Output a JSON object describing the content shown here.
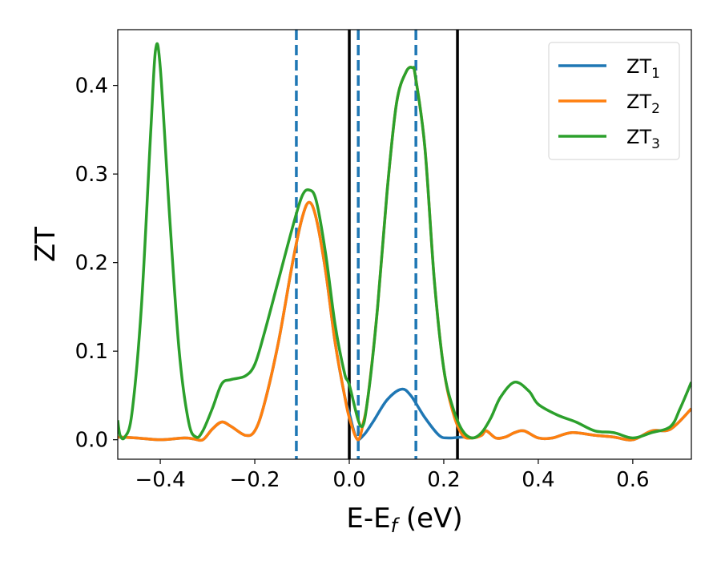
{
  "chart_data": {
    "type": "line",
    "title": "",
    "xlabel": "E-E_f (eV)",
    "xlabel_main": "E-E",
    "xlabel_sub": "f",
    "xlabel_tail": " (eV)",
    "ylabel": "ZT",
    "xlim": [
      -0.49,
      0.724
    ],
    "ylim": [
      -0.022,
      0.463
    ],
    "xticks": [
      -0.4,
      -0.2,
      0.0,
      0.2,
      0.4,
      0.6
    ],
    "xtick_labels": [
      "−0.4",
      "−0.2",
      "0.0",
      "0.2",
      "0.4",
      "0.6"
    ],
    "yticks": [
      0.0,
      0.1,
      0.2,
      0.3,
      0.4
    ],
    "ytick_labels": [
      "0.0",
      "0.1",
      "0.2",
      "0.3",
      "0.4"
    ],
    "grid": false,
    "legend_placement": "top-right",
    "vlines_dashed": {
      "x": [
        -0.112,
        0.019,
        0.141
      ],
      "color": "#1f77b4"
    },
    "vlines_solid": {
      "x": [
        0.0,
        0.229
      ],
      "color": "#000000"
    },
    "series": [
      {
        "name": "ZT",
        "sub": "1",
        "color": "#1f77b4",
        "x": [
          -0.49,
          -0.45,
          -0.4,
          -0.35,
          -0.33,
          -0.31,
          -0.29,
          -0.27,
          -0.25,
          -0.22,
          -0.2,
          -0.18,
          -0.15,
          -0.12,
          -0.1,
          -0.085,
          -0.07,
          -0.05,
          -0.03,
          -0.01,
          0.0,
          0.015,
          0.03,
          0.05,
          0.08,
          0.11,
          0.13,
          0.16,
          0.19,
          0.21,
          0.24,
          0.26,
          0.28,
          0.29,
          0.31,
          0.33,
          0.35,
          0.37,
          0.4,
          0.43,
          0.47,
          0.52,
          0.56,
          0.6,
          0.64,
          0.68,
          0.724
        ],
        "y": [
          0.003,
          0.002,
          0.0,
          0.002,
          0.001,
          0.0,
          0.012,
          0.02,
          0.015,
          0.005,
          0.01,
          0.04,
          0.11,
          0.2,
          0.25,
          0.268,
          0.25,
          0.19,
          0.11,
          0.05,
          0.03,
          0.002,
          0.005,
          0.02,
          0.045,
          0.057,
          0.05,
          0.025,
          0.005,
          0.002,
          0.003,
          0.002,
          0.005,
          0.01,
          0.002,
          0.003,
          0.008,
          0.01,
          0.002,
          0.002,
          0.008,
          0.005,
          0.003,
          0.0,
          0.01,
          0.012,
          0.035
        ]
      },
      {
        "name": "ZT",
        "sub": "2",
        "color": "#ff7f0e",
        "x": [
          -0.49,
          -0.45,
          -0.4,
          -0.35,
          -0.33,
          -0.31,
          -0.29,
          -0.27,
          -0.25,
          -0.22,
          -0.2,
          -0.18,
          -0.15,
          -0.12,
          -0.1,
          -0.085,
          -0.07,
          -0.05,
          -0.03,
          -0.01,
          0.0,
          0.018,
          0.03,
          0.04,
          0.06,
          0.08,
          0.1,
          0.12,
          0.134,
          0.14,
          0.16,
          0.18,
          0.2,
          0.22,
          0.24,
          0.26,
          0.28,
          0.29,
          0.31,
          0.33,
          0.35,
          0.37,
          0.4,
          0.43,
          0.47,
          0.52,
          0.56,
          0.6,
          0.64,
          0.68,
          0.724
        ],
        "y": [
          0.003,
          0.002,
          0.0,
          0.002,
          0.001,
          0.0,
          0.012,
          0.02,
          0.015,
          0.005,
          0.01,
          0.04,
          0.11,
          0.2,
          0.25,
          0.268,
          0.25,
          0.19,
          0.11,
          0.05,
          0.025,
          0.0,
          0.02,
          0.05,
          0.15,
          0.28,
          0.38,
          0.415,
          0.42,
          0.41,
          0.33,
          0.18,
          0.08,
          0.03,
          0.005,
          0.002,
          0.005,
          0.01,
          0.002,
          0.003,
          0.008,
          0.01,
          0.002,
          0.002,
          0.008,
          0.005,
          0.003,
          0.0,
          0.01,
          0.012,
          0.035
        ]
      },
      {
        "name": "ZT",
        "sub": "3",
        "color": "#2ca02c",
        "x": [
          -0.49,
          -0.485,
          -0.475,
          -0.46,
          -0.44,
          -0.42,
          -0.41,
          -0.4,
          -0.38,
          -0.36,
          -0.34,
          -0.324,
          -0.31,
          -0.29,
          -0.27,
          -0.25,
          -0.22,
          -0.2,
          -0.18,
          -0.15,
          -0.12,
          -0.1,
          -0.085,
          -0.07,
          -0.05,
          -0.03,
          -0.01,
          0.0,
          0.025,
          0.04,
          0.06,
          0.08,
          0.1,
          0.12,
          0.134,
          0.14,
          0.16,
          0.18,
          0.2,
          0.22,
          0.24,
          0.26,
          0.28,
          0.3,
          0.32,
          0.35,
          0.38,
          0.4,
          0.44,
          0.48,
          0.52,
          0.56,
          0.6,
          0.64,
          0.68,
          0.7,
          0.724
        ],
        "y": [
          0.022,
          0.005,
          0.003,
          0.03,
          0.15,
          0.35,
          0.44,
          0.42,
          0.25,
          0.1,
          0.02,
          0.003,
          0.01,
          0.035,
          0.063,
          0.068,
          0.072,
          0.085,
          0.12,
          0.18,
          0.24,
          0.275,
          0.282,
          0.27,
          0.21,
          0.13,
          0.075,
          0.062,
          0.015,
          0.05,
          0.15,
          0.28,
          0.38,
          0.415,
          0.42,
          0.41,
          0.33,
          0.18,
          0.08,
          0.035,
          0.01,
          0.002,
          0.008,
          0.025,
          0.048,
          0.065,
          0.055,
          0.04,
          0.028,
          0.02,
          0.01,
          0.008,
          0.002,
          0.008,
          0.015,
          0.035,
          0.065
        ]
      }
    ]
  }
}
